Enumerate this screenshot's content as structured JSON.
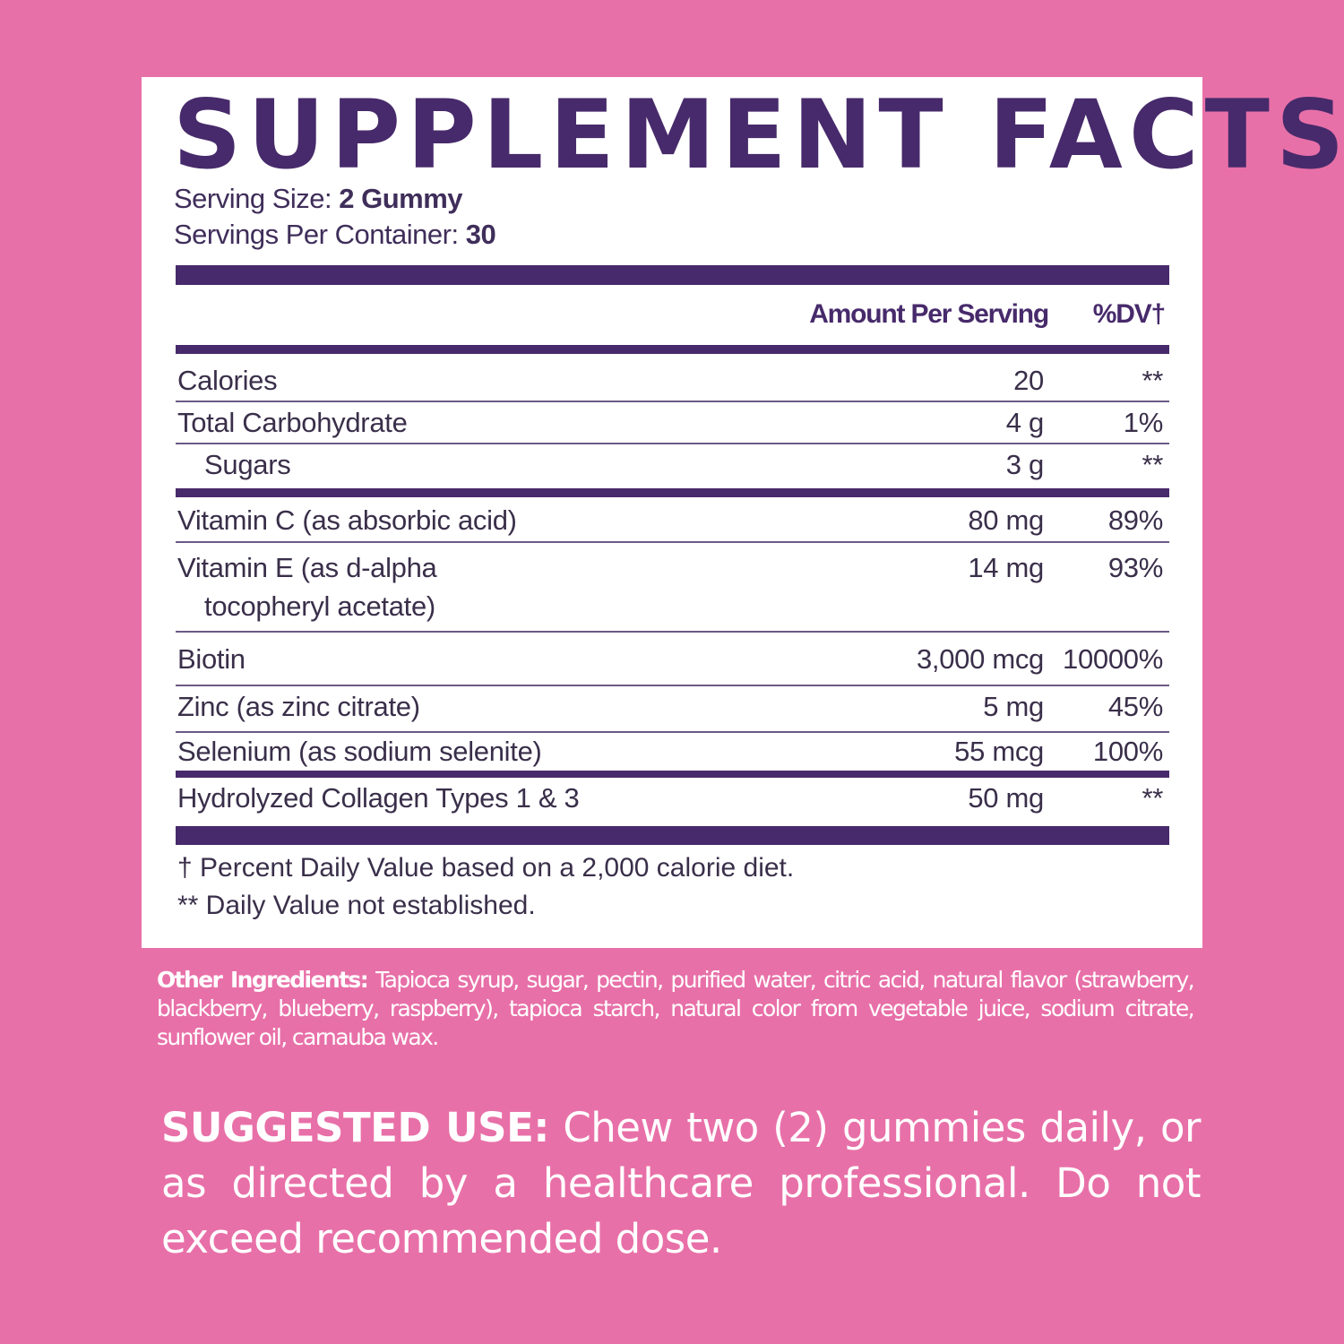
{
  "colors": {
    "background": "#e870a8",
    "panel": "#ffffff",
    "accent": "#472a6b"
  },
  "title": "SUPPLEMENT FACTS",
  "serving_size": {
    "label": "Serving Size:",
    "value": "2 Gummy"
  },
  "servings_per_container": {
    "label": "Servings Per Container:",
    "value": "30"
  },
  "header": {
    "amount": "Amount Per Serving",
    "dv": "%DV†"
  },
  "rows": [
    {
      "name": "Calories",
      "amount": "20",
      "dv": "**"
    },
    {
      "name": "Total Carbohydrate",
      "amount": "4 g",
      "dv": "1%"
    },
    {
      "name": "Sugars",
      "amount": "3 g",
      "dv": "**"
    },
    {
      "name": "Vitamin C (as absorbic acid)",
      "amount": "80 mg",
      "dv": "89%"
    },
    {
      "name": "Vitamin E (as d-alpha",
      "name2": "tocopheryl acetate)",
      "amount": "14 mg",
      "dv": "93%"
    },
    {
      "name": "Biotin",
      "amount": "3,000 mcg",
      "dv": "10000%"
    },
    {
      "name": "Zinc (as zinc citrate)",
      "amount": "5 mg",
      "dv": "45%"
    },
    {
      "name": "Selenium (as sodium selenite)",
      "amount": "55 mcg",
      "dv": "100%"
    },
    {
      "name": "Hydrolyzed Collagen Types 1 & 3",
      "amount": "50 mg",
      "dv": "**"
    }
  ],
  "footnotes": [
    "† Percent Daily Value based on a 2,000 calorie diet.",
    "** Daily Value not established."
  ],
  "other_ingredients": {
    "label": "Other Ingredients:",
    "text": "Tapioca syrup, sugar, pectin, purified water, citric acid, natural flavor (strawberry, blackberry, blueberry, raspberry), tapioca starch, natural color from vegetable juice, sodium citrate, sunflower oil, carnauba wax."
  },
  "suggested_use": {
    "label": "SUGGESTED USE:",
    "text": "Chew two (2) gummies daily, or as directed by a healthcare professional. Do not exceed recommended dose."
  }
}
